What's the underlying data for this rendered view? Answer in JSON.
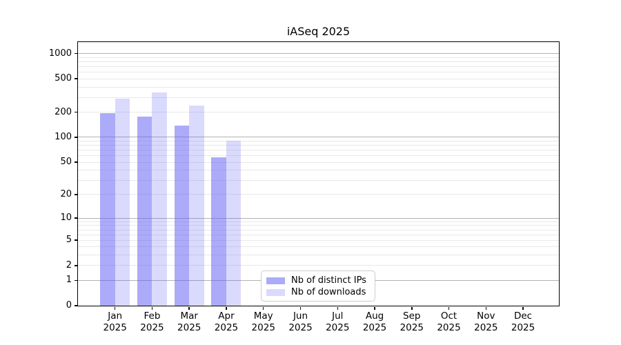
{
  "title": "iASeq 2025",
  "chart_data": {
    "type": "bar",
    "title": "iASeq 2025",
    "y_scale": "log1p",
    "ylim": [
      0,
      1380
    ],
    "grid": true,
    "legend_position": "lower center",
    "ytick_values": [
      1000,
      500,
      200,
      100,
      50,
      20,
      10,
      5,
      2,
      1,
      0
    ],
    "ytick_labels": [
      "1000",
      "500",
      "200",
      "100",
      "50",
      "20",
      "10",
      "5",
      "2",
      "1",
      "0"
    ],
    "major_gridline_values": [
      1,
      10,
      100,
      1000
    ],
    "minor_gridline_values": [
      2,
      3,
      4,
      5,
      6,
      7,
      8,
      9,
      20,
      30,
      40,
      50,
      60,
      70,
      80,
      90,
      200,
      300,
      400,
      500,
      600,
      700,
      800,
      900
    ],
    "categories": [
      {
        "month": "Jan",
        "year": "2025"
      },
      {
        "month": "Feb",
        "year": "2025"
      },
      {
        "month": "Mar",
        "year": "2025"
      },
      {
        "month": "Apr",
        "year": "2025"
      },
      {
        "month": "May",
        "year": "2025"
      },
      {
        "month": "Jun",
        "year": "2025"
      },
      {
        "month": "Jul",
        "year": "2025"
      },
      {
        "month": "Aug",
        "year": "2025"
      },
      {
        "month": "Sep",
        "year": "2025"
      },
      {
        "month": "Oct",
        "year": "2025"
      },
      {
        "month": "Nov",
        "year": "2025"
      },
      {
        "month": "Dec",
        "year": "2025"
      }
    ],
    "series": [
      {
        "name": "Nb of distinct IPs",
        "color": "rgba(87,87,245,0.5)",
        "values": [
          195,
          178,
          137,
          57,
          null,
          null,
          null,
          null,
          null,
          null,
          null,
          null
        ]
      },
      {
        "name": "Nb of downloads",
        "color": "rgba(87,87,245,0.22)",
        "values": [
          288,
          347,
          240,
          91,
          null,
          null,
          null,
          null,
          null,
          null,
          null,
          null
        ]
      }
    ]
  },
  "colors": {
    "major_grid": "#b2b2b2",
    "minor_grid": "#e8e8e8",
    "spine": "#000000",
    "text": "#000000",
    "legend_border": "#cccccc",
    "background": "#ffffff"
  }
}
